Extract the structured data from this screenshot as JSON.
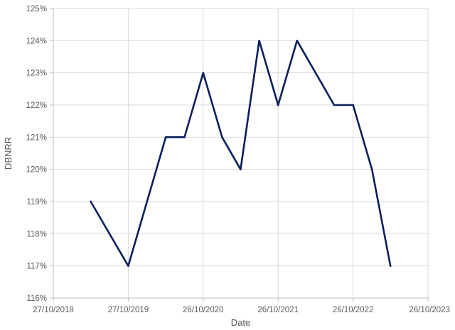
{
  "chart_data": {
    "type": "line",
    "title": "",
    "xlabel": "Date",
    "ylabel": "DBNRR",
    "x_axis": {
      "scale": "date",
      "range": [
        "2018-10-27",
        "2023-10-26"
      ],
      "ticks": [
        "2018-10-27",
        "2019-10-27",
        "2020-10-26",
        "2021-10-26",
        "2022-10-26",
        "2023-10-26"
      ],
      "tick_labels": [
        "27/10/2018",
        "27/10/2019",
        "26/10/2020",
        "26/10/2021",
        "26/10/2022",
        "26/10/2023"
      ]
    },
    "y_axis": {
      "range": [
        116,
        125
      ],
      "ticks": [
        116,
        117,
        118,
        119,
        120,
        121,
        122,
        123,
        124,
        125
      ],
      "tick_labels": [
        "116%",
        "117%",
        "118%",
        "119%",
        "120%",
        "121%",
        "122%",
        "123%",
        "124%",
        "125%"
      ],
      "unit": "%"
    },
    "grid": true,
    "legend": "none",
    "series": [
      {
        "color": "#0b1f5c",
        "points": [
          {
            "x": "2019-04-27",
            "y": 119
          },
          {
            "x": "2019-10-27",
            "y": 117
          },
          {
            "x": "2020-04-27",
            "y": 121
          },
          {
            "x": "2020-07-27",
            "y": 121
          },
          {
            "x": "2020-10-26",
            "y": 123
          },
          {
            "x": "2021-01-26",
            "y": 121
          },
          {
            "x": "2021-04-26",
            "y": 120
          },
          {
            "x": "2021-07-26",
            "y": 124
          },
          {
            "x": "2021-10-26",
            "y": 122
          },
          {
            "x": "2022-01-26",
            "y": 124
          },
          {
            "x": "2022-07-26",
            "y": 122
          },
          {
            "x": "2022-10-26",
            "y": 122
          },
          {
            "x": "2023-01-26",
            "y": 120
          },
          {
            "x": "2023-04-26",
            "y": 117
          }
        ]
      }
    ]
  }
}
